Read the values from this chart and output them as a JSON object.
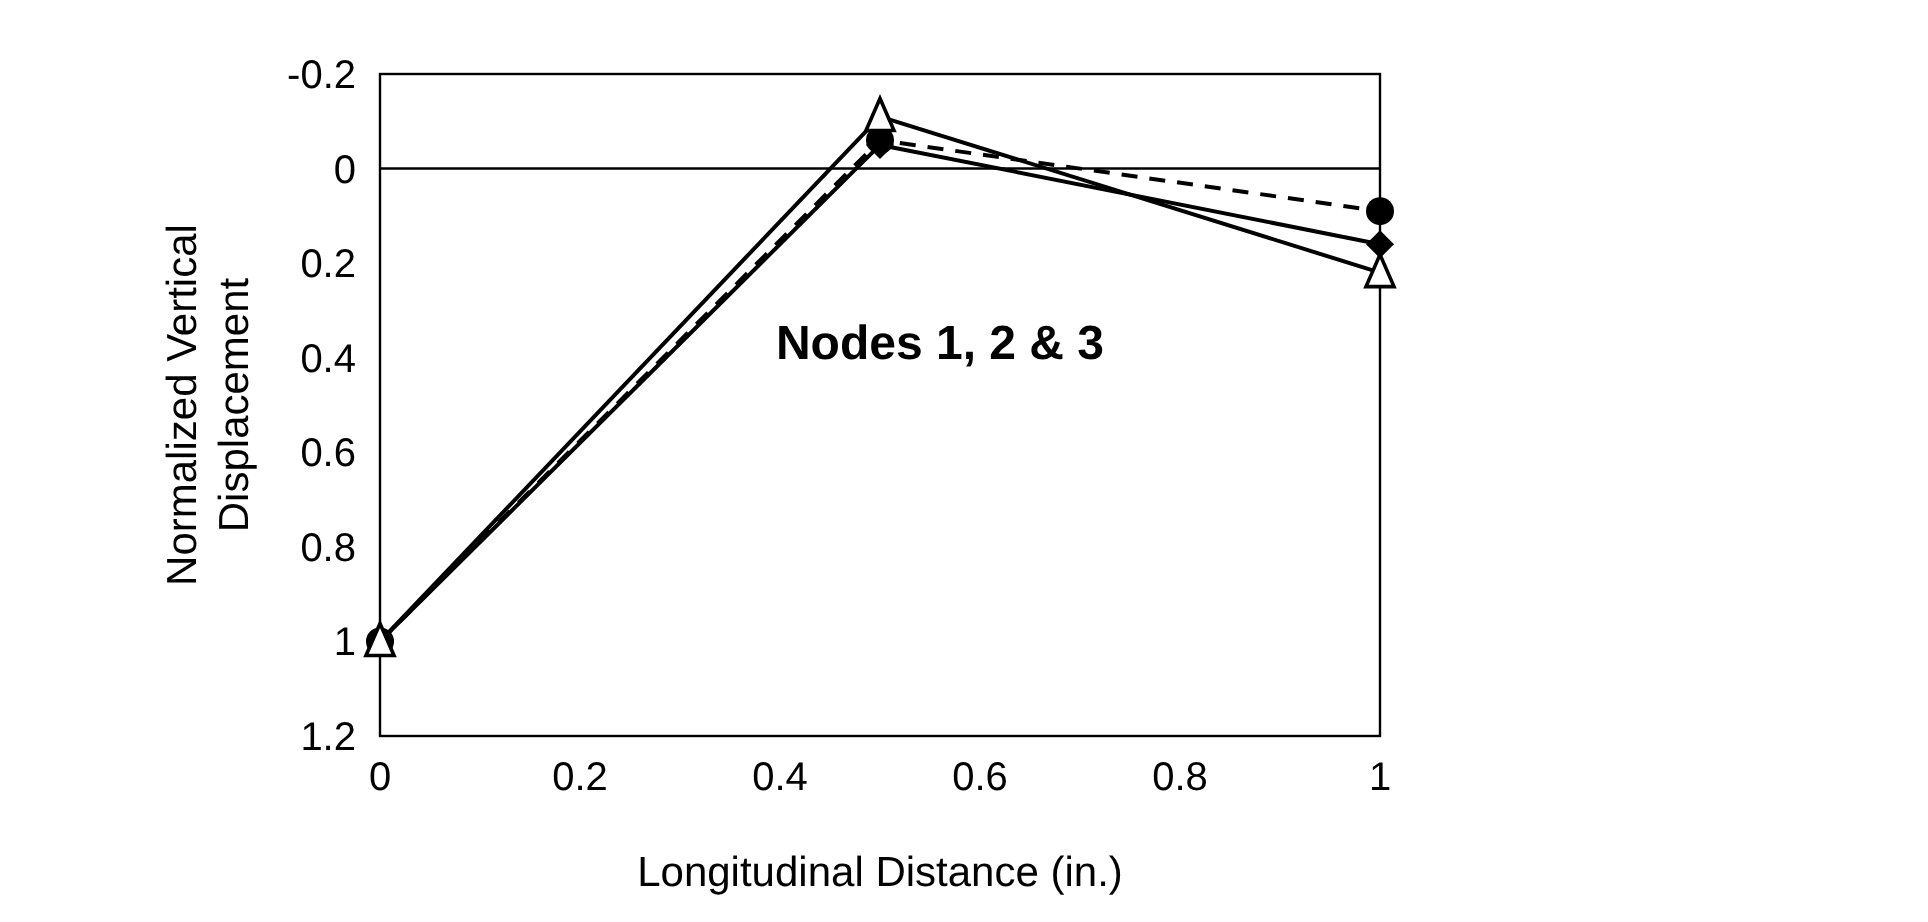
{
  "chart_data": {
    "type": "line",
    "xlabel": "Longitudinal Distance (in.)",
    "ylabel": "Normalized Vertical Displacement",
    "x": [
      0,
      0.5,
      1
    ],
    "series": [
      {
        "color": "#000000",
        "values": [
          1,
          -0.06,
          0.09
        ],
        "marker": "circle",
        "line_style": "dashed"
      },
      {
        "color": "#000000",
        "values": [
          1,
          -0.05,
          0.16
        ],
        "marker": "diamond",
        "line_style": "solid"
      },
      {
        "color": "#000000",
        "values": [
          1,
          -0.11,
          0.22
        ],
        "marker": "triangle",
        "line_style": "solid"
      }
    ],
    "xlim": [
      0,
      1
    ],
    "xticks": [
      0,
      0.2,
      0.4,
      0.6,
      0.8,
      1
    ],
    "ylim": [
      1.2,
      -0.2
    ],
    "yticks": [
      -0.2,
      0,
      0.2,
      0.4,
      0.6,
      0.8,
      1,
      1.2
    ],
    "ref_lines": [
      {
        "axis": "y",
        "value": 0
      }
    ],
    "annotations": [
      "Nodes 1, 2 & 3"
    ]
  }
}
